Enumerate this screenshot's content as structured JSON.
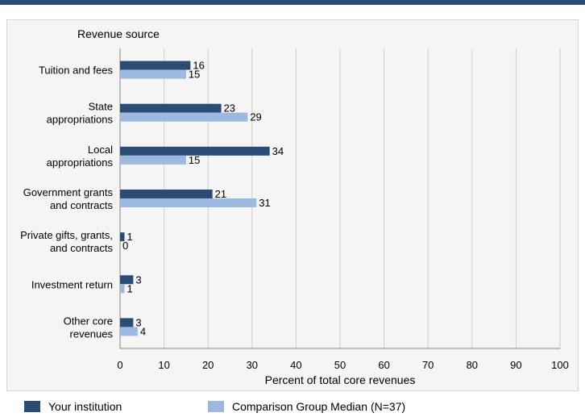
{
  "chart_data": {
    "type": "bar",
    "orientation": "horizontal",
    "title": "",
    "ylabel": "Revenue source",
    "xlabel": "Percent of total core revenues",
    "xlim": [
      0,
      100
    ],
    "xticks": [
      0,
      10,
      20,
      30,
      40,
      50,
      60,
      70,
      80,
      90,
      100
    ],
    "grid": true,
    "legend_position": "bottom",
    "categories": [
      [
        "Tuition and fees"
      ],
      [
        "State",
        "appropriations"
      ],
      [
        "Local",
        "appropriations"
      ],
      [
        "Government grants",
        "and contracts"
      ],
      [
        "Private gifts, grants,",
        "and contracts"
      ],
      [
        "Investment return"
      ],
      [
        "Other core",
        "revenues"
      ]
    ],
    "series": [
      {
        "name": "Your institution",
        "color": "#2b4c75",
        "values": [
          16,
          23,
          34,
          21,
          1,
          3,
          3
        ]
      },
      {
        "name": "Comparison Group Median (N=37)",
        "color": "#9db9e0",
        "values": [
          15,
          29,
          15,
          31,
          0,
          1,
          4
        ]
      }
    ]
  }
}
